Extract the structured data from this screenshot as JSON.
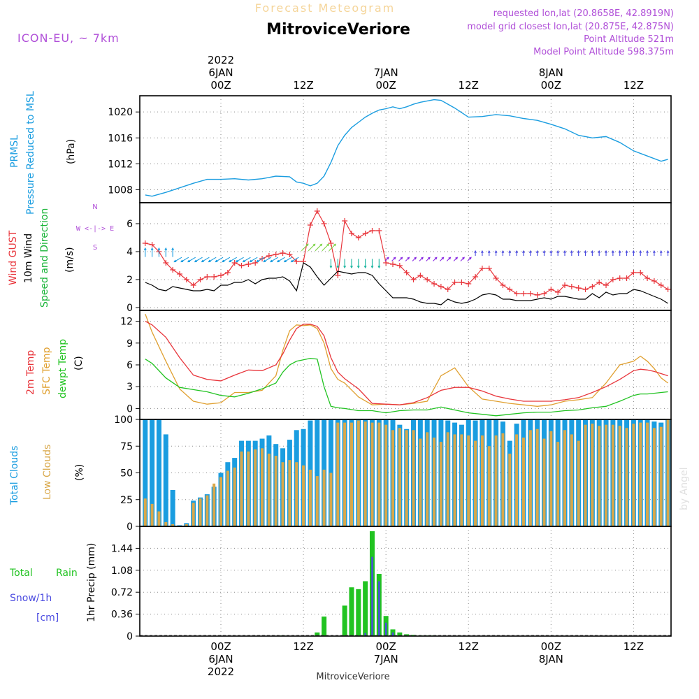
{
  "header": {
    "subtitle": "Forecast Meteogram",
    "title": "MitroviceVeriore",
    "model": "ICON-EU, ~ 7km",
    "info": [
      "requested lon,lat (20.8658E, 42.8919N)",
      "model grid closest lon,lat (20.875E, 42.875N)",
      "Point Altitude 521m",
      "Model Point Altitude 598.375m"
    ],
    "watermark": "by Angel",
    "bottom_title": "MitroviceVeriore"
  },
  "colors": {
    "prmsl": "#1a9de0",
    "gust": "#e8353b",
    "wind": "#000000",
    "wind_dir": "#1bb53a",
    "temp2m": "#e8353b",
    "sfc": "#e0a030",
    "dewpt": "#21c321",
    "total_clouds": "#1a9de0",
    "low_clouds": "#d9a84a",
    "rain": "#21c321",
    "snow": "#4a4ae0",
    "meta": "#b04fd8"
  },
  "time_axis": {
    "top_labels": [
      {
        "h": 0,
        "lines": [
          "2022",
          "6JAN",
          "00Z"
        ]
      },
      {
        "h": 12,
        "lines": [
          "12Z"
        ]
      },
      {
        "h": 24,
        "lines": [
          "7JAN",
          "00Z"
        ]
      },
      {
        "h": 36,
        "lines": [
          "12Z"
        ]
      },
      {
        "h": 48,
        "lines": [
          "8JAN",
          "00Z"
        ]
      },
      {
        "h": 60,
        "lines": [
          "12Z"
        ]
      }
    ],
    "bottom_labels": [
      {
        "h": 0,
        "lines": [
          "00Z",
          "6JAN",
          "2022"
        ]
      },
      {
        "h": 12,
        "lines": [
          "12Z"
        ]
      },
      {
        "h": 24,
        "lines": [
          "00Z",
          "7JAN"
        ]
      },
      {
        "h": 36,
        "lines": [
          "12Z"
        ]
      },
      {
        "h": 48,
        "lines": [
          "00Z",
          "8JAN"
        ]
      },
      {
        "h": 60,
        "lines": [
          "12Z"
        ]
      }
    ]
  },
  "panel_labels": {
    "pressure": {
      "lines": [
        "PRMSL",
        "Pressure Reduced to MSL"
      ],
      "unit": "(hPa)"
    },
    "wind": {
      "gust": "Wind GUST",
      "wind": "10m Wind",
      "dir": "Speed and Direction",
      "unit": "(m/s)",
      "compass": [
        "N",
        "W <-|-> E",
        "S"
      ]
    },
    "temp": {
      "t2m": "2m Temp",
      "sfc": "SFC Temp",
      "dew": "dewpt Temp",
      "unit": "(C)"
    },
    "clouds": {
      "total": "Total Clouds",
      "low": "Low Clouds",
      "unit": "(%)"
    },
    "precip": {
      "rain_a": "Total",
      "rain_b": "Rain",
      "snow": "Snow/1h",
      "snow_unit": "[cm]",
      "axis": "1hr Precip (mm)"
    }
  },
  "chart_data": [
    {
      "type": "line",
      "name": "pressure",
      "x_hours": [
        -11,
        -10,
        -8,
        -6,
        -4,
        -2,
        0,
        2,
        4,
        6,
        8,
        10,
        11,
        12,
        13,
        14,
        15,
        16,
        17,
        18,
        19,
        20,
        21,
        22,
        23,
        24,
        25,
        26,
        27,
        28,
        29,
        30,
        31,
        32,
        34,
        36,
        38,
        40,
        42,
        44,
        46,
        48,
        50,
        52,
        54,
        56,
        58,
        60,
        62,
        64,
        65
      ],
      "series": [
        {
          "values": [
            1007.2,
            1007.0,
            1007.6,
            1008.3,
            1009.0,
            1009.6,
            1009.6,
            1009.7,
            1009.5,
            1009.7,
            1010.1,
            1010.0,
            1009.2,
            1009.0,
            1008.6,
            1009.0,
            1010.1,
            1012.2,
            1014.8,
            1016.4,
            1017.6,
            1018.4,
            1019.2,
            1019.8,
            1020.3,
            1020.5,
            1020.8,
            1020.5,
            1020.8,
            1021.2,
            1021.5,
            1021.7,
            1021.9,
            1021.8,
            1020.6,
            1019.2,
            1019.3,
            1019.6,
            1019.4,
            1019.0,
            1018.7,
            1018.1,
            1017.4,
            1016.4,
            1016.0,
            1016.2,
            1015.3,
            1014.0,
            1013.2,
            1012.4,
            1012.7
          ]
        }
      ],
      "ylim": [
        1006,
        1022.5
      ],
      "yticks": [
        1008,
        1012,
        1016,
        1020
      ]
    },
    {
      "type": "line",
      "name": "wind",
      "x_hours": [
        -11,
        -10,
        -9,
        -8,
        -7,
        -6,
        -5,
        -4,
        -3,
        -2,
        -1,
        0,
        1,
        2,
        3,
        4,
        5,
        6,
        7,
        8,
        9,
        10,
        11,
        12,
        13,
        14,
        15,
        16,
        17,
        18,
        19,
        20,
        21,
        22,
        23,
        24,
        25,
        26,
        27,
        28,
        29,
        30,
        31,
        32,
        33,
        34,
        35,
        36,
        37,
        38,
        39,
        40,
        41,
        42,
        43,
        44,
        45,
        46,
        47,
        48,
        49,
        50,
        51,
        52,
        53,
        54,
        55,
        56,
        57,
        58,
        59,
        60,
        61,
        62,
        63,
        64,
        65
      ],
      "series": [
        {
          "name": "Wind GUST",
          "values": [
            4.6,
            4.5,
            4.0,
            3.2,
            2.7,
            2.4,
            2.0,
            1.6,
            2.0,
            2.2,
            2.2,
            2.3,
            2.5,
            3.2,
            3.0,
            3.1,
            3.2,
            3.5,
            3.7,
            3.8,
            3.9,
            3.8,
            3.3,
            3.3,
            5.9,
            6.9,
            6.0,
            4.6,
            2.3,
            6.2,
            5.3,
            5.0,
            5.3,
            5.5,
            5.5,
            3.2,
            3.1,
            3.0,
            2.5,
            2.0,
            2.3,
            2.0,
            1.7,
            1.5,
            1.3,
            1.8,
            1.8,
            1.7,
            2.2,
            2.8,
            2.8,
            2.1,
            1.6,
            1.3,
            1.0,
            1.0,
            1.0,
            0.9,
            1.0,
            1.3,
            1.1,
            1.6,
            1.5,
            1.4,
            1.3,
            1.5,
            1.8,
            1.6,
            2.0,
            2.1,
            2.1,
            2.5,
            2.5,
            2.1,
            1.9,
            1.6,
            1.3
          ]
        },
        {
          "name": "10m Wind",
          "values": [
            1.8,
            1.6,
            1.3,
            1.2,
            1.5,
            1.4,
            1.3,
            1.2,
            1.2,
            1.3,
            1.2,
            1.6,
            1.6,
            1.8,
            1.8,
            2.0,
            1.7,
            2.0,
            2.1,
            2.1,
            2.2,
            1.9,
            1.2,
            3.2,
            2.9,
            2.2,
            1.6,
            2.1,
            2.6,
            2.5,
            2.4,
            2.5,
            2.5,
            2.3,
            1.7,
            1.2,
            0.7,
            0.7,
            0.7,
            0.6,
            0.4,
            0.3,
            0.3,
            0.2,
            0.6,
            0.4,
            0.3,
            0.4,
            0.6,
            0.9,
            1.0,
            0.9,
            0.6,
            0.6,
            0.5,
            0.5,
            0.5,
            0.6,
            0.7,
            0.6,
            0.8,
            0.8,
            0.7,
            0.6,
            0.6,
            1.0,
            0.7,
            1.1,
            0.9,
            1.0,
            1.0,
            1.3,
            1.2,
            1.0,
            0.8,
            0.6,
            0.3
          ]
        }
      ],
      "ylim": [
        -0.2,
        7.5
      ],
      "yticks": [
        0,
        2,
        4,
        6
      ],
      "arrow_rows": [
        {
          "from": -11,
          "to": -7,
          "y": 3.8,
          "color": "#1a9de0",
          "dir": "n"
        },
        {
          "from": -6,
          "to": 11,
          "y": 3.5,
          "color": "#1a9de0",
          "dir": "sw"
        },
        {
          "from": 12,
          "to": 16,
          "y": 4.2,
          "color": "#7fd44a",
          "dir": "ne"
        },
        {
          "from": 16,
          "to": 23,
          "y": 3.3,
          "color": "#1bb5a0",
          "dir": "s"
        },
        {
          "from": 24,
          "to": 36,
          "y": 3.4,
          "color": "#8a2be2",
          "dir": "ne"
        },
        {
          "from": 37,
          "to": 65,
          "y": 3.8,
          "color": "#4a4ae0",
          "dir": "n"
        }
      ]
    },
    {
      "type": "line",
      "name": "temperature",
      "x_hours": [
        -11,
        -10,
        -8,
        -6,
        -4,
        -2,
        0,
        2,
        4,
        6,
        8,
        9,
        10,
        11,
        12,
        13,
        14,
        15,
        16,
        17,
        18,
        20,
        22,
        24,
        26,
        28,
        30,
        32,
        34,
        36,
        38,
        40,
        42,
        44,
        46,
        48,
        50,
        52,
        54,
        56,
        58,
        60,
        61,
        62,
        63,
        64,
        65
      ],
      "series": [
        {
          "name": "2m Temp",
          "values": [
            12.0,
            11.5,
            9.8,
            7.0,
            4.6,
            4.0,
            3.8,
            4.6,
            5.3,
            5.2,
            6.0,
            7.5,
            9.4,
            11.0,
            11.6,
            11.6,
            11.3,
            10.0,
            7.0,
            5.0,
            4.1,
            2.7,
            0.7,
            0.6,
            0.5,
            0.8,
            1.5,
            2.5,
            2.9,
            2.9,
            2.4,
            1.7,
            1.3,
            1.0,
            1.0,
            1.0,
            1.2,
            1.5,
            2.2,
            3.0,
            4.0,
            5.2,
            5.4,
            5.3,
            5.1,
            4.8,
            4.5
          ]
        },
        {
          "name": "SFC Temp",
          "values": [
            13.0,
            10.5,
            6.5,
            2.7,
            1.0,
            0.6,
            0.8,
            2.2,
            2.2,
            2.5,
            4.5,
            8.0,
            10.7,
            11.5,
            11.4,
            11.5,
            11.0,
            9.0,
            5.5,
            4.0,
            3.5,
            1.6,
            0.5,
            0.6,
            0.5,
            0.7,
            1.0,
            4.5,
            5.6,
            3.0,
            1.3,
            1.0,
            0.7,
            0.5,
            0.3,
            0.5,
            1.0,
            1.2,
            1.5,
            3.5,
            6.0,
            6.5,
            7.2,
            6.5,
            5.5,
            4.2,
            3.5
          ]
        },
        {
          "name": "dewpt Temp",
          "values": [
            6.8,
            6.2,
            4.2,
            2.9,
            2.6,
            2.3,
            1.8,
            1.6,
            2.1,
            2.7,
            3.5,
            5.0,
            6.0,
            6.5,
            6.7,
            6.9,
            6.8,
            3.0,
            0.3,
            0.1,
            0.0,
            -0.3,
            -0.3,
            -0.6,
            -0.3,
            -0.2,
            -0.2,
            0.2,
            -0.2,
            -0.6,
            -0.8,
            -1.0,
            -0.8,
            -0.6,
            -0.5,
            -0.5,
            -0.3,
            -0.2,
            0.1,
            0.3,
            1.0,
            1.8,
            2.0,
            2.0,
            2.1,
            2.2,
            2.3
          ]
        }
      ],
      "ylim": [
        -1.5,
        13.5
      ],
      "yticks": [
        0,
        3,
        6,
        9,
        12
      ]
    },
    {
      "type": "bar",
      "name": "clouds",
      "x_hours": [
        -11,
        -10,
        -9,
        -8,
        -7,
        -6,
        -5,
        -4,
        -3,
        -2,
        -1,
        0,
        1,
        2,
        3,
        4,
        5,
        6,
        7,
        8,
        9,
        10,
        11,
        12,
        13,
        14,
        15,
        16,
        17,
        18,
        19,
        20,
        21,
        22,
        23,
        24,
        25,
        26,
        27,
        28,
        29,
        30,
        31,
        32,
        33,
        34,
        35,
        36,
        37,
        38,
        39,
        40,
        41,
        42,
        43,
        44,
        45,
        46,
        47,
        48,
        49,
        50,
        51,
        52,
        53,
        54,
        55,
        56,
        57,
        58,
        59,
        60,
        61,
        62,
        63,
        64,
        65
      ],
      "series": [
        {
          "name": "Total Clouds",
          "values": [
            100,
            100,
            100,
            86,
            34,
            1,
            3,
            24,
            27,
            30,
            37,
            50,
            60,
            64,
            80,
            80,
            80,
            82,
            85,
            77,
            73,
            81,
            90,
            91,
            99,
            100,
            100,
            100,
            100,
            100,
            100,
            100,
            100,
            100,
            100,
            100,
            100,
            95,
            91,
            100,
            100,
            100,
            100,
            100,
            99,
            97,
            95,
            100,
            99,
            100,
            100,
            100,
            98,
            80,
            96,
            100,
            100,
            100,
            100,
            100,
            100,
            100,
            100,
            100,
            100,
            100,
            100,
            100,
            100,
            100,
            100,
            100,
            100,
            100,
            98,
            97,
            100
          ]
        },
        {
          "name": "Low Clouds",
          "values": [
            26,
            21,
            14,
            4,
            2,
            0,
            2,
            22,
            26,
            29,
            40,
            46,
            52,
            55,
            70,
            70,
            72,
            73,
            68,
            66,
            60,
            62,
            60,
            57,
            53,
            47,
            53,
            50,
            97,
            97,
            97,
            99,
            98,
            97,
            97,
            95,
            90,
            92,
            90,
            90,
            82,
            88,
            83,
            79,
            88,
            86,
            86,
            85,
            80,
            85,
            75,
            85,
            87,
            68,
            86,
            83,
            90,
            91,
            82,
            89,
            79,
            90,
            86,
            80,
            95,
            96,
            94,
            95,
            95,
            94,
            92,
            96,
            97,
            97,
            92,
            93,
            100
          ]
        }
      ],
      "ylim": [
        0,
        100
      ],
      "yticks": [
        0,
        25,
        50,
        75,
        100
      ]
    },
    {
      "type": "bar",
      "name": "precipitation",
      "x_hours": [
        9,
        14,
        15,
        18,
        19,
        20,
        21,
        22,
        23,
        24,
        25,
        26,
        27,
        28,
        29,
        30,
        31
      ],
      "series": [
        {
          "name": "Total Rain",
          "values": [
            0.01,
            0.06,
            0.32,
            0.5,
            0.8,
            0.77,
            0.9,
            1.72,
            1.02,
            0.33,
            0.11,
            0.06,
            0.03,
            0.02,
            0.01,
            0.01,
            0.01
          ]
        },
        {
          "name": "Snow/1h",
          "values": [
            0,
            0,
            0,
            0,
            0,
            0,
            0.05,
            1.3,
            0.9,
            0.22,
            0.06,
            0,
            0,
            0,
            0,
            0,
            0
          ]
        }
      ],
      "ylim": [
        0,
        1.8
      ],
      "yticks": [
        0,
        0.36,
        0.72,
        1.08,
        1.44
      ]
    }
  ]
}
